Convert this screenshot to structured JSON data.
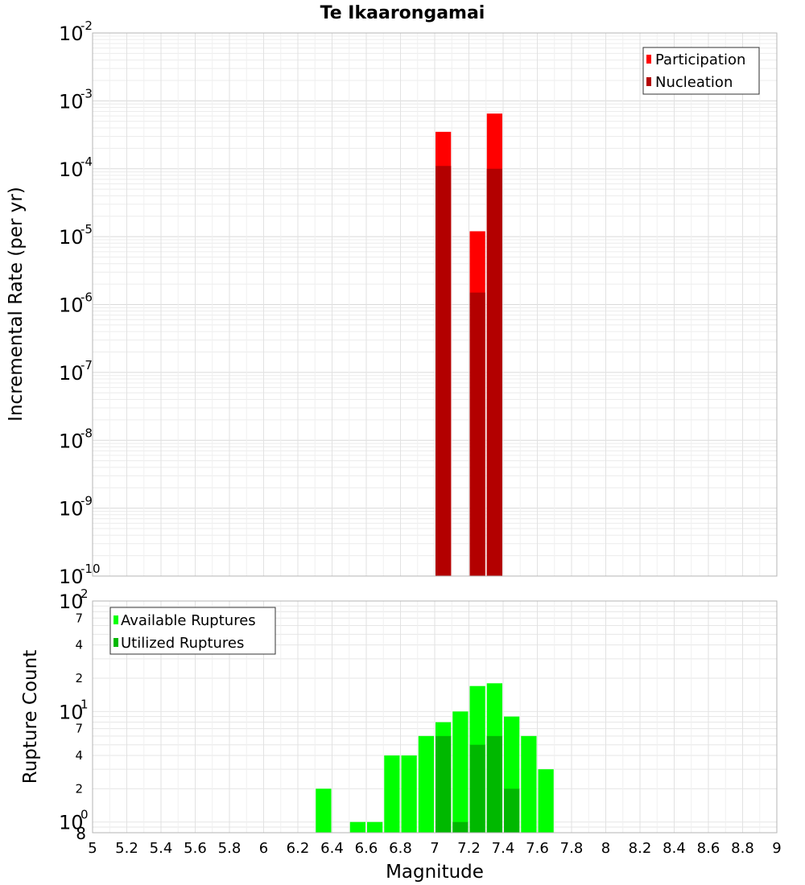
{
  "chart_data": [
    {
      "type": "bar",
      "title": "Te Ikaarongamai",
      "ylabel": "Incremental Rate (per yr)",
      "xlabel": "",
      "y_scale": "log",
      "ylim": [
        1e-10,
        0.01
      ],
      "xlim": [
        5,
        9
      ],
      "bar_width": 0.1,
      "grid": true,
      "legend_position": "top-right",
      "series": [
        {
          "name": "Participation",
          "color": "#ff0000",
          "points": [
            {
              "x": 7.05,
              "y": 0.00035
            },
            {
              "x": 7.25,
              "y": 1.2e-05
            },
            {
              "x": 7.35,
              "y": 0.00065
            }
          ]
        },
        {
          "name": "Nucleation",
          "color": "#b30000",
          "points": [
            {
              "x": 7.05,
              "y": 0.00011
            },
            {
              "x": 7.25,
              "y": 1.5e-06
            },
            {
              "x": 7.35,
              "y": 0.0001
            }
          ]
        }
      ],
      "y_ticks": [
        {
          "mantissa": "10",
          "exp": "-10"
        },
        {
          "mantissa": "10",
          "exp": "-9"
        },
        {
          "mantissa": "10",
          "exp": "-8"
        },
        {
          "mantissa": "10",
          "exp": "-7"
        },
        {
          "mantissa": "10",
          "exp": "-6"
        },
        {
          "mantissa": "10",
          "exp": "-5"
        },
        {
          "mantissa": "10",
          "exp": "-4"
        },
        {
          "mantissa": "10",
          "exp": "-3"
        },
        {
          "mantissa": "10",
          "exp": "-2"
        }
      ]
    },
    {
      "type": "bar",
      "title": "",
      "ylabel": "Rupture Count",
      "xlabel": "Magnitude",
      "y_scale": "log",
      "ylim": [
        0.8,
        100
      ],
      "xlim": [
        5,
        9
      ],
      "bar_width": 0.1,
      "grid": true,
      "legend_position": "top-left",
      "series": [
        {
          "name": "Available Ruptures",
          "color": "#00ff00",
          "points": [
            {
              "x": 6.35,
              "y": 2
            },
            {
              "x": 6.55,
              "y": 1
            },
            {
              "x": 6.65,
              "y": 1
            },
            {
              "x": 6.75,
              "y": 4
            },
            {
              "x": 6.85,
              "y": 4
            },
            {
              "x": 6.95,
              "y": 6
            },
            {
              "x": 7.05,
              "y": 8
            },
            {
              "x": 7.15,
              "y": 10
            },
            {
              "x": 7.25,
              "y": 17
            },
            {
              "x": 7.35,
              "y": 18
            },
            {
              "x": 7.45,
              "y": 9
            },
            {
              "x": 7.55,
              "y": 6
            },
            {
              "x": 7.65,
              "y": 3
            }
          ]
        },
        {
          "name": "Utilized Ruptures",
          "color": "#00b800",
          "points": [
            {
              "x": 7.05,
              "y": 6
            },
            {
              "x": 7.15,
              "y": 1
            },
            {
              "x": 7.25,
              "y": 5
            },
            {
              "x": 7.35,
              "y": 6
            },
            {
              "x": 7.45,
              "y": 2
            }
          ]
        }
      ],
      "y_major_ticks": [
        {
          "mantissa": "10",
          "exp": "0",
          "value": 1
        },
        {
          "mantissa": "10",
          "exp": "1",
          "value": 10
        },
        {
          "mantissa": "10",
          "exp": "2",
          "value": 100
        }
      ],
      "y_minor_ticks": [
        {
          "label": "8",
          "value": 0.8
        },
        {
          "label": "2",
          "value": 2
        },
        {
          "label": "4",
          "value": 4
        },
        {
          "label": "7",
          "value": 7
        },
        {
          "label": "2",
          "value": 20
        },
        {
          "label": "4",
          "value": 40
        },
        {
          "label": "7",
          "value": 70
        }
      ],
      "x_ticks": [
        "5",
        "5.2",
        "5.4",
        "5.6",
        "5.8",
        "6",
        "6.2",
        "6.4",
        "6.6",
        "6.8",
        "7",
        "7.2",
        "7.4",
        "7.6",
        "7.8",
        "8",
        "8.2",
        "8.4",
        "8.6",
        "8.8",
        "9"
      ]
    }
  ]
}
